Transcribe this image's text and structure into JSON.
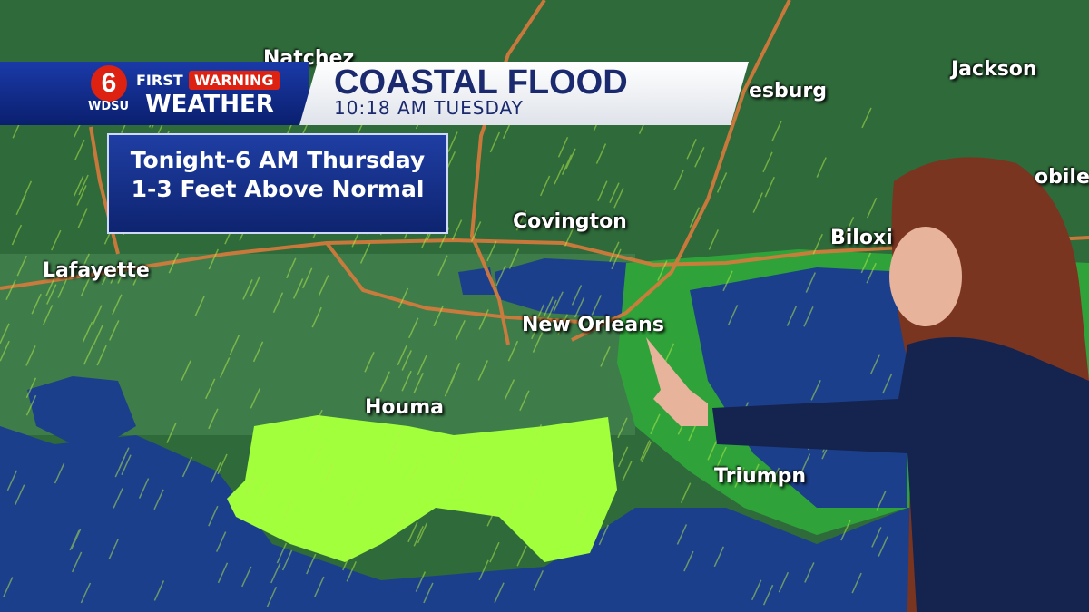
{
  "header": {
    "logo_number": "6",
    "logo_call": "WDSU",
    "first": "FIRST",
    "warning": "WARNING",
    "weather": "WEATHER",
    "title": "COASTAL FLOOD",
    "time": "10:18 AM  TUESDAY"
  },
  "info_box": {
    "lines": [
      "Tonight-6 AM Thursday",
      "1-3 Feet Above Normal"
    ]
  },
  "map": {
    "cities": [
      "Natchez",
      "Jackson",
      "esburg",
      "obile",
      "Covington",
      "Biloxi",
      "Lafayette",
      "New Orleans",
      "Houma",
      "Triumpn"
    ]
  }
}
